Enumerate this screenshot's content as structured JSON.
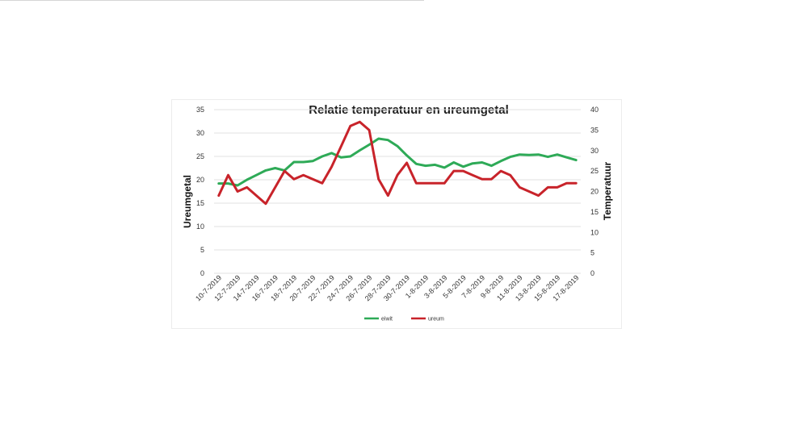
{
  "chart_data": {
    "type": "line",
    "title": "Relatie temperatuur en ureumgetal",
    "ylabel_left": "Ureumgetal",
    "ylabel_right": "Temperatuur",
    "ylim_left": [
      0,
      35
    ],
    "ylim_right": [
      0,
      40
    ],
    "y_ticks_left": [
      "35",
      "30",
      "25",
      "20",
      "15",
      "10",
      "5",
      "0"
    ],
    "y_ticks_right": [
      "40",
      "35",
      "30",
      "25",
      "20",
      "15",
      "10",
      "5",
      "0"
    ],
    "grid": true,
    "legend_position": "bottom",
    "x": [
      "10-7-2019",
      "11-7-2019",
      "12-7-2019",
      "13-7-2019",
      "14-7-2019",
      "15-7-2019",
      "16-7-2019",
      "17-7-2019",
      "18-7-2019",
      "19-7-2019",
      "20-7-2019",
      "21-7-2019",
      "22-7-2019",
      "23-7-2019",
      "24-7-2019",
      "25-7-2019",
      "26-7-2019",
      "27-7-2019",
      "28-7-2019",
      "29-7-2019",
      "30-7-2019",
      "31-7-2019",
      "1-8-2019",
      "2-8-2019",
      "3-8-2019",
      "4-8-2019",
      "5-8-2019",
      "6-8-2019",
      "7-8-2019",
      "8-8-2019",
      "9-8-2019",
      "10-8-2019",
      "11-8-2019",
      "12-8-2019",
      "13-8-2019",
      "14-8-2019",
      "15-8-2019",
      "16-8-2019",
      "17-8-2019"
    ],
    "x_tick_labels": [
      "10-7-2019",
      "12-7-2019",
      "14-7-2019",
      "16-7-2019",
      "18-7-2019",
      "20-7-2019",
      "22-7-2019",
      "24-7-2019",
      "26-7-2019",
      "28-7-2019",
      "30-7-2019",
      "1-8-2019",
      "3-8-2019",
      "5-8-2019",
      "7-8-2019",
      "9-8-2019",
      "11-8-2019",
      "13-8-2019",
      "15-8-2019",
      "17-8-2019"
    ],
    "series": [
      {
        "name": "eiwit",
        "axis": "left",
        "color": "#2eaa57",
        "values": [
          19.2,
          19.2,
          18.8,
          20.0,
          21.0,
          22.0,
          22.5,
          22.0,
          23.8,
          23.8,
          24.0,
          25.0,
          25.7,
          24.8,
          25.0,
          26.3,
          27.5,
          28.8,
          28.5,
          27.2,
          25.2,
          23.4,
          23.0,
          23.2,
          22.6,
          23.7,
          22.8,
          23.5,
          23.7,
          23.0,
          24.0,
          24.9,
          25.4,
          25.3,
          25.4,
          24.9,
          25.4,
          24.8,
          24.2
        ]
      },
      {
        "name": "ureum",
        "axis": "right",
        "color": "#c8232a",
        "values": [
          19,
          24,
          20,
          21,
          19,
          17,
          21,
          25,
          23,
          24,
          23,
          22,
          26,
          31,
          36,
          37,
          35,
          23,
          19,
          24,
          27,
          22,
          22,
          22,
          22,
          25,
          25,
          24,
          23,
          23,
          25,
          24,
          21,
          20,
          19,
          21,
          21,
          22,
          22
        ]
      }
    ]
  }
}
